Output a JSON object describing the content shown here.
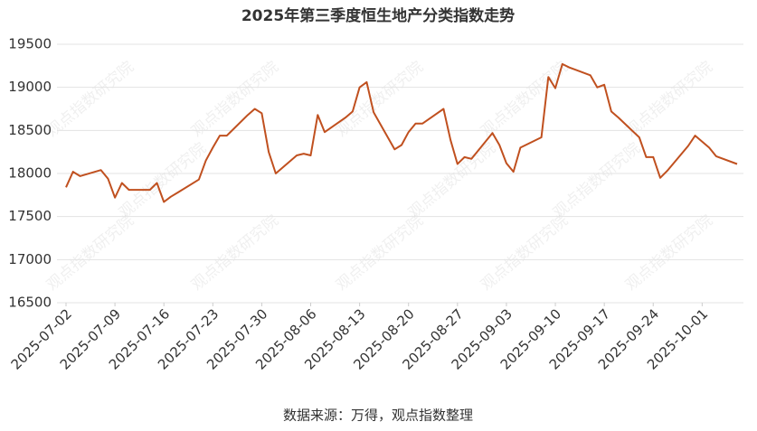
{
  "chart_data": {
    "type": "line",
    "title": "2025年第三季度恒生地产分类指数走势",
    "source": "数据来源：万得，观点指数整理",
    "watermark": "观点指数研究院",
    "x": [
      "2025-07-02",
      "2025-07-03",
      "2025-07-04",
      "2025-07-07",
      "2025-07-08",
      "2025-07-09",
      "2025-07-10",
      "2025-07-11",
      "2025-07-14",
      "2025-07-15",
      "2025-07-16",
      "2025-07-17",
      "2025-07-18",
      "2025-07-21",
      "2025-07-22",
      "2025-07-23",
      "2025-07-24",
      "2025-07-25",
      "2025-07-28",
      "2025-07-29",
      "2025-07-30",
      "2025-07-31",
      "2025-08-01",
      "2025-08-04",
      "2025-08-05",
      "2025-08-06",
      "2025-08-07",
      "2025-08-08",
      "2025-08-11",
      "2025-08-12",
      "2025-08-13",
      "2025-08-14",
      "2025-08-15",
      "2025-08-18",
      "2025-08-19",
      "2025-08-20",
      "2025-08-21",
      "2025-08-22",
      "2025-08-25",
      "2025-08-26",
      "2025-08-27",
      "2025-08-28",
      "2025-08-29",
      "2025-09-01",
      "2025-09-02",
      "2025-09-03",
      "2025-09-04",
      "2025-09-05",
      "2025-09-08",
      "2025-09-09",
      "2025-09-10",
      "2025-09-11",
      "2025-09-12",
      "2025-09-15",
      "2025-09-16",
      "2025-09-17",
      "2025-09-18",
      "2025-09-19",
      "2025-09-22",
      "2025-09-23",
      "2025-09-24",
      "2025-09-25",
      "2025-09-26",
      "2025-09-29",
      "2025-09-30",
      "2025-10-02",
      "2025-10-03",
      "2025-10-06"
    ],
    "series": [
      {
        "name": "恒生地产分类指数",
        "color": "#c0501f",
        "values": [
          17840,
          18020,
          17970,
          18040,
          17940,
          17720,
          17890,
          17810,
          17810,
          17890,
          17670,
          17730,
          17780,
          17930,
          18150,
          18300,
          18440,
          18440,
          18680,
          18750,
          18700,
          18250,
          18000,
          18210,
          18230,
          18210,
          18680,
          18480,
          18650,
          18720,
          19000,
          19060,
          18710,
          18280,
          18330,
          18480,
          18580,
          18580,
          18750,
          18390,
          18110,
          18190,
          18170,
          18470,
          18330,
          18120,
          18020,
          18300,
          18420,
          19120,
          18990,
          19270,
          19230,
          19140,
          19000,
          19030,
          18720,
          18650,
          18420,
          18190,
          18190,
          17950,
          18030,
          18320,
          18440,
          18300,
          18200,
          18110
        ]
      }
    ],
    "xlim": [
      "2025-07-02",
      "2025-10-06"
    ],
    "xticks": [
      "2025-07-02",
      "2025-07-09",
      "2025-07-16",
      "2025-07-23",
      "2025-07-30",
      "2025-08-06",
      "2025-08-13",
      "2025-08-20",
      "2025-08-27",
      "2025-09-03",
      "2025-09-10",
      "2025-09-17",
      "2025-09-24",
      "2025-10-01"
    ],
    "ylim": [
      16500,
      19500
    ],
    "yticks": [
      16500,
      17000,
      17500,
      18000,
      18500,
      19000,
      19500
    ],
    "grid": true
  }
}
